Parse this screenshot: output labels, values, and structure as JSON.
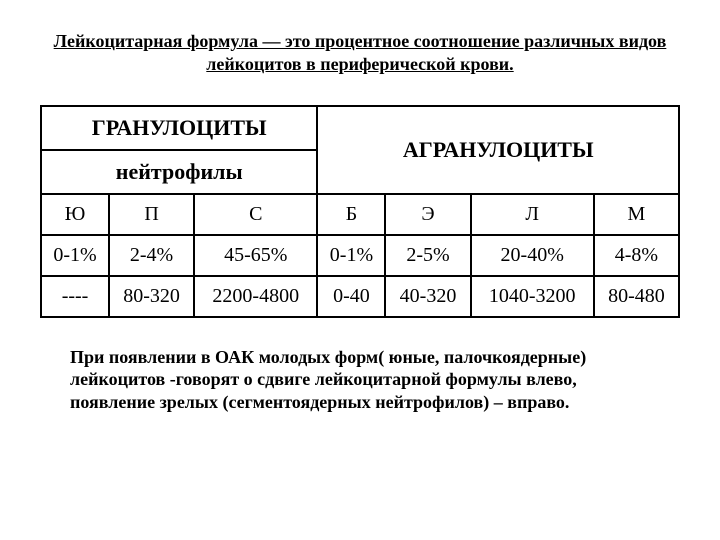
{
  "title": "Лейкоцитарная формула — это процентное соотношение различных видов лейкоцитов в периферической крови.",
  "table": {
    "header_granulo": "ГРАНУЛОЦИТЫ",
    "header_agranulo": "АГРАНУЛОЦИТЫ",
    "header_neutro": "нейтрофилы",
    "cols": {
      "c1": "Ю",
      "c2": "П",
      "c3": "С",
      "c4": "Б",
      "c5": "Э",
      "c6": "Л",
      "c7": "М"
    },
    "row_pct": {
      "c1": "0-1%",
      "c2": "2-4%",
      "c3": "45-65%",
      "c4": "0-1%",
      "c5": "2-5%",
      "c6": "20-40%",
      "c7": "4-8%"
    },
    "row_abs": {
      "c1": "----",
      "c2": "80-320",
      "c3": "2200-4800",
      "c4": "0-40",
      "c5": "40-320",
      "c6": "1040-3200",
      "c7": "80-480"
    }
  },
  "footer": "При появлении в ОАК молодых форм( юные, палочкоядерные) лейкоцитов -говорят о сдвиге лейкоцитарной формулы влево, появление зрелых (сегментоядерных нейтрофилов) – вправо."
}
